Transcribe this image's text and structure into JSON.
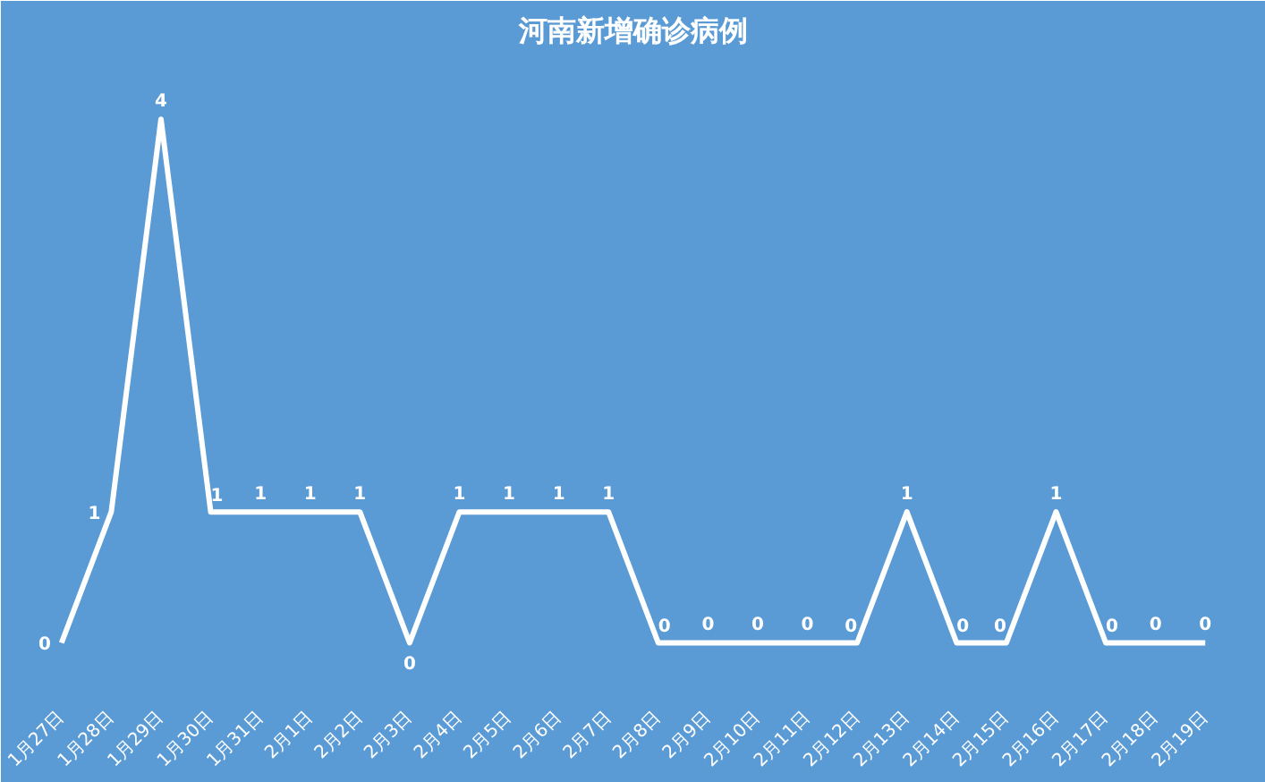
{
  "chart_data": {
    "type": "line",
    "title": "河南新增确诊病例",
    "categories": [
      "1月27日",
      "1月28日",
      "1月29日",
      "1月30日",
      "1月31日",
      "2月1日",
      "2月2日",
      "2月3日",
      "2月4日",
      "2月5日",
      "2月6日",
      "2月7日",
      "2月8日",
      "2月9日",
      "2月10日",
      "2月11日",
      "2月12日",
      "2月13日",
      "2月14日",
      "2月15日",
      "2月16日",
      "2月17日",
      "2月18日",
      "2月19日"
    ],
    "series": [
      {
        "color": "#ffffff",
        "values": [
          0,
          1,
          4,
          1,
          1,
          1,
          1,
          0,
          1,
          1,
          1,
          1,
          0,
          0,
          0,
          0,
          0,
          1,
          0,
          0,
          1,
          0,
          0,
          0
        ]
      }
    ],
    "data_labels": true,
    "grid": false,
    "tick_labels": "x",
    "line_style": "solid"
  }
}
